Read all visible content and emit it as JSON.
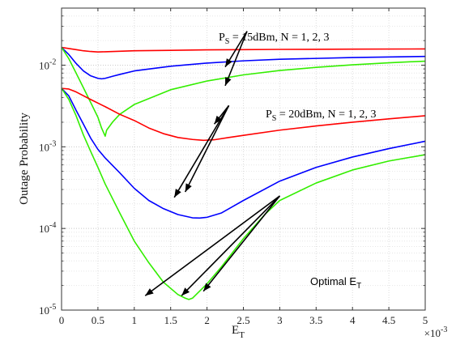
{
  "chart_data": {
    "type": "line",
    "xlabel": "E",
    "xlabel_sub": "T",
    "ylabel": "Outage Probability",
    "x_multiplier_label": "×10",
    "x_multiplier_exp": "-3",
    "xlim": [
      0,
      5
    ],
    "ylim": [
      1e-05,
      0.05
    ],
    "y_scale": "log",
    "grid": true,
    "x_ticks": [
      0,
      0.5,
      1,
      1.5,
      2,
      2.5,
      3,
      3.5,
      4,
      4.5,
      5
    ],
    "x_tick_labels": [
      "0",
      "0.5",
      "1",
      "1.5",
      "2",
      "2.5",
      "3",
      "3.5",
      "4",
      "4.5",
      "5"
    ],
    "y_ticks": [
      1e-05,
      0.0001,
      0.001,
      0.01
    ],
    "y_tick_bases": [
      "10",
      "10",
      "10",
      "10"
    ],
    "y_tick_exps": [
      "-5",
      "-4",
      "-3",
      "-2"
    ],
    "series": [
      {
        "color": "#ff0000",
        "x": [
          0,
          0.1,
          0.2,
          0.3,
          0.4,
          0.5,
          0.6,
          0.8,
          1.0,
          1.5,
          2.0,
          2.5,
          3.0,
          4.0,
          5.0
        ],
        "y": [
          0.0165,
          0.016,
          0.0155,
          0.015,
          0.0147,
          0.0145,
          0.0146,
          0.0148,
          0.015,
          0.0152,
          0.0154,
          0.0155,
          0.0156,
          0.0157,
          0.0158
        ]
      },
      {
        "color": "#0000ff",
        "x": [
          0,
          0.1,
          0.2,
          0.3,
          0.4,
          0.5,
          0.55,
          0.6,
          0.7,
          0.8,
          1.0,
          1.5,
          2.0,
          2.5,
          3.0,
          4.0,
          5.0
        ],
        "y": [
          0.0165,
          0.0135,
          0.0105,
          0.0085,
          0.0074,
          0.0069,
          0.0068,
          0.0069,
          0.0073,
          0.0077,
          0.0085,
          0.0097,
          0.0106,
          0.0113,
          0.0118,
          0.0124,
          0.0128
        ]
      },
      {
        "color": "#33ee00",
        "x": [
          0,
          0.1,
          0.2,
          0.3,
          0.4,
          0.5,
          0.55,
          0.6,
          0.62,
          0.7,
          0.8,
          1.0,
          1.5,
          2.0,
          2.5,
          3.0,
          3.5,
          4.0,
          4.5,
          5.0
        ],
        "y": [
          0.0165,
          0.012,
          0.008,
          0.0053,
          0.0035,
          0.0023,
          0.0017,
          0.00135,
          0.0016,
          0.002,
          0.0025,
          0.0033,
          0.005,
          0.0064,
          0.0076,
          0.0086,
          0.0094,
          0.0101,
          0.0107,
          0.0112
        ]
      },
      {
        "color": "#ff0000",
        "x": [
          0,
          0.1,
          0.2,
          0.4,
          0.6,
          0.8,
          1.0,
          1.2,
          1.4,
          1.6,
          1.8,
          1.95,
          2.1,
          2.3,
          2.5,
          3.0,
          3.5,
          4.0,
          4.5,
          5.0
        ],
        "y": [
          0.0052,
          0.0051,
          0.0047,
          0.0038,
          0.0031,
          0.0025,
          0.0021,
          0.0017,
          0.00145,
          0.0013,
          0.00123,
          0.0012,
          0.00122,
          0.0013,
          0.00138,
          0.0016,
          0.0018,
          0.002,
          0.0022,
          0.0024
        ]
      },
      {
        "color": "#0000ff",
        "x": [
          0,
          0.1,
          0.2,
          0.3,
          0.4,
          0.5,
          0.6,
          0.8,
          1.0,
          1.2,
          1.4,
          1.6,
          1.8,
          1.9,
          2.0,
          2.2,
          2.5,
          3.0,
          3.5,
          4.0,
          4.5,
          5.0
        ],
        "y": [
          0.0052,
          0.0042,
          0.0028,
          0.0019,
          0.00128,
          0.00093,
          0.00073,
          0.00048,
          0.00031,
          0.00022,
          0.000175,
          0.000148,
          0.000135,
          0.000134,
          0.000137,
          0.000155,
          0.00022,
          0.00038,
          0.00056,
          0.00075,
          0.00095,
          0.00117
        ]
      },
      {
        "color": "#33ee00",
        "x": [
          0,
          0.1,
          0.2,
          0.3,
          0.4,
          0.5,
          0.6,
          0.8,
          1.0,
          1.2,
          1.4,
          1.6,
          1.7,
          1.75,
          1.8,
          2.0,
          2.2,
          2.5,
          2.8,
          3.0,
          3.5,
          4.0,
          4.5,
          5.0
        ],
        "y": [
          0.0052,
          0.0038,
          0.0024,
          0.0014,
          0.00088,
          0.00056,
          0.00035,
          0.000155,
          7e-05,
          3.8e-05,
          2.2e-05,
          1.55e-05,
          1.4e-05,
          1.35e-05,
          1.4e-05,
          2.1e-05,
          3.4e-05,
          7.5e-05,
          0.00015,
          0.00022,
          0.00036,
          0.00052,
          0.00067,
          0.0008
        ]
      }
    ],
    "annotations": {
      "ps15": {
        "prefix": "P",
        "sub": "S",
        "text": " = 15dBm, N = 1, 2, 3"
      },
      "ps20": {
        "prefix": "P",
        "sub": "S",
        "text": " = 20dBm, N = 1, 2, 3"
      },
      "optimal": {
        "prefix": "Optimal E",
        "sub": "T"
      }
    },
    "arrows": [
      {
        "from": [
          2.55,
          0.026
        ],
        "to": [
          2.25,
          0.0095
        ]
      },
      {
        "from": [
          2.55,
          0.026
        ],
        "to": [
          2.25,
          0.0056
        ]
      },
      {
        "from": [
          2.3,
          0.0032
        ],
        "to": [
          2.1,
          0.0019
        ]
      },
      {
        "from": [
          2.3,
          0.0032
        ],
        "to": [
          1.7,
          0.00028
        ]
      },
      {
        "from": [
          2.3,
          0.0032
        ],
        "to": [
          1.55,
          0.00024
        ]
      },
      {
        "from": [
          3.0,
          0.00025
        ],
        "to": [
          1.95,
          1.7e-05
        ]
      },
      {
        "from": [
          3.0,
          0.00025
        ],
        "to": [
          1.65,
          1.5e-05
        ]
      },
      {
        "from": [
          3.0,
          0.00025
        ],
        "to": [
          1.15,
          1.5e-05
        ]
      }
    ]
  }
}
